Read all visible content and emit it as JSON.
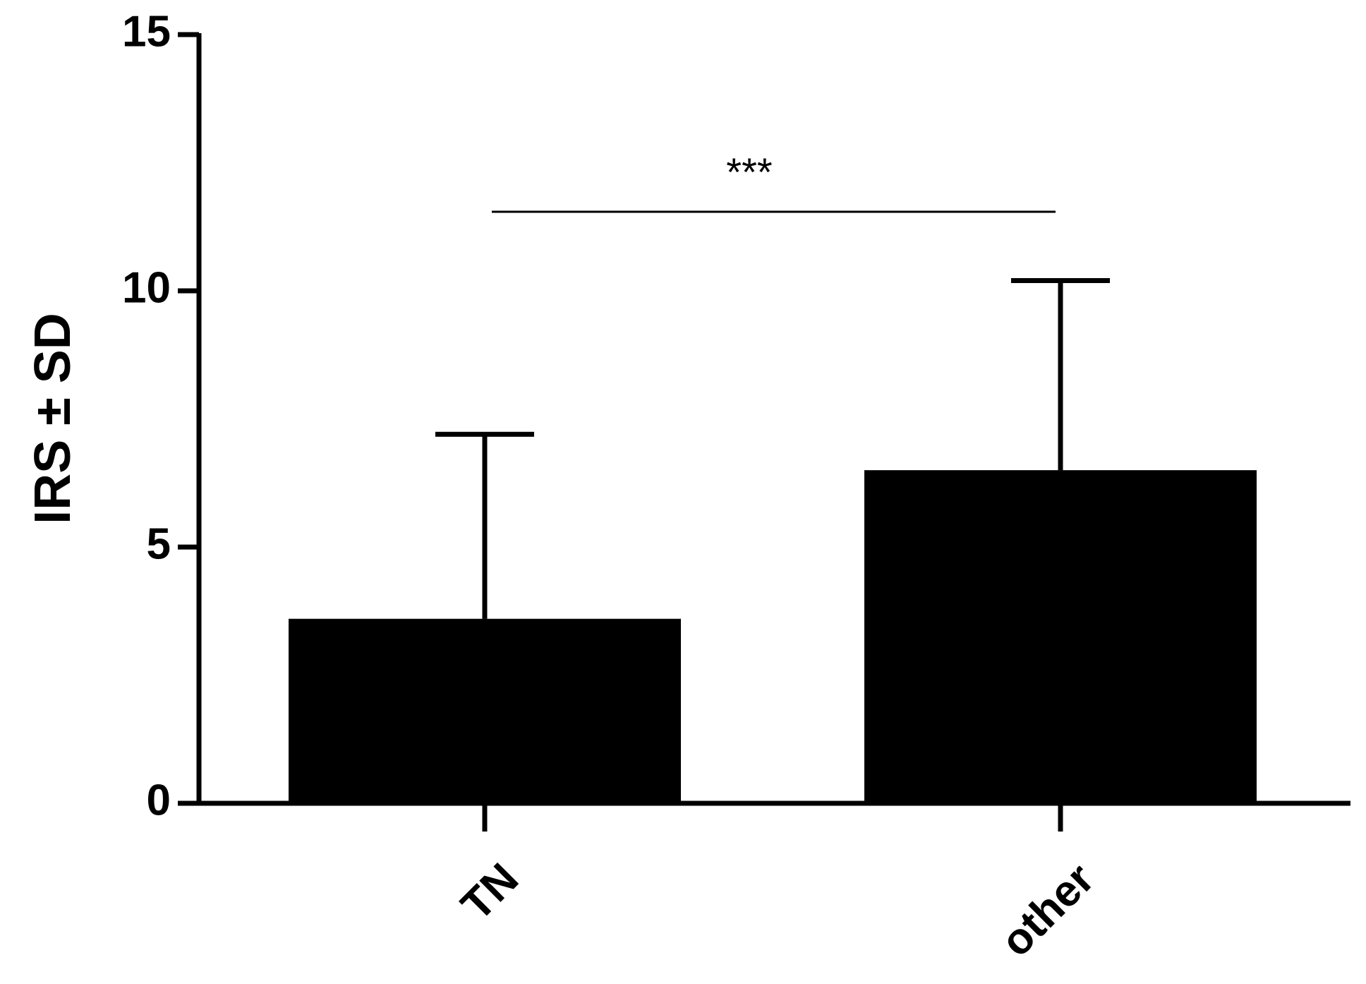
{
  "chart_data": {
    "type": "bar",
    "y_label": "IRS ± SD",
    "categories": [
      "TN",
      "other"
    ],
    "values": [
      3.6,
      6.5
    ],
    "errors": [
      3.6,
      3.7
    ],
    "color": "#000000",
    "ylim": [
      0,
      15
    ],
    "yticks": [
      0,
      5,
      10,
      15
    ],
    "annotation": "***"
  }
}
